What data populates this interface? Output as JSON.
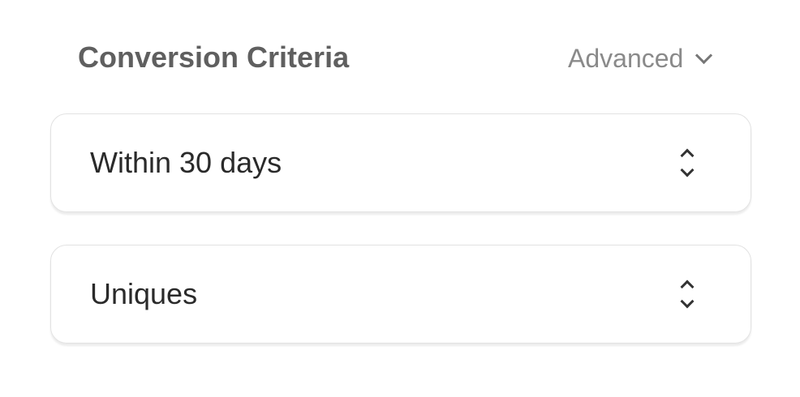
{
  "section": {
    "title": "Conversion Criteria",
    "advanced_label": "Advanced"
  },
  "selects": [
    {
      "value": "Within 30 days"
    },
    {
      "value": "Uniques"
    }
  ]
}
